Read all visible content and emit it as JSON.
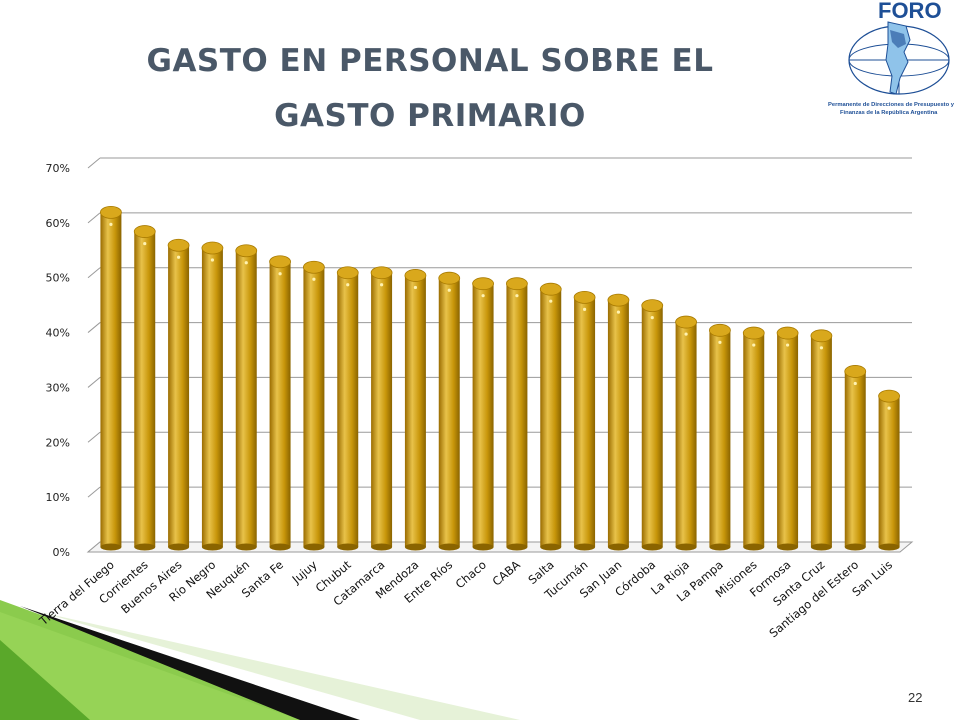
{
  "slide": {
    "title_line1": "GASTO EN PERSONAL SOBRE EL",
    "title_line2": "GASTO PRIMARIO",
    "page_number": "22"
  },
  "logo": {
    "name": "FORO",
    "caption_line1": "Permanente de Direcciones de Presupuesto y",
    "caption_line2": "Finanzas de la República Argentina"
  },
  "colors": {
    "bar": "#c8960a",
    "bar_highlight": "#e8c24a",
    "bar_shadow": "#8a6400",
    "title": "#4a5868",
    "green_accent": "#7ec53a"
  },
  "chart_data": {
    "type": "bar",
    "title": "",
    "xlabel": "",
    "ylabel": "",
    "ylim": [
      0,
      0.7
    ],
    "yticks": [
      0,
      0.1,
      0.2,
      0.3,
      0.4,
      0.5,
      0.6,
      0.7
    ],
    "ytick_labels": [
      "0%",
      "10%",
      "20%",
      "30%",
      "40%",
      "50%",
      "60%",
      "70%"
    ],
    "grid": true,
    "categories": [
      "Tierra del Fuego",
      "Corrientes",
      "Buenos Aires",
      "Río Negro",
      "Neuquén",
      "Santa Fe",
      "Jujuy",
      "Chubut",
      "Catamarca",
      "Mendoza",
      "Entre Ríos",
      "Chaco",
      "CABA",
      "Salta",
      "Tucumán",
      "San Juan",
      "Córdoba",
      "La Rioja",
      "La Pampa",
      "Misiones",
      "Formosa",
      "Santa Cruz",
      "Santiago del Estero",
      "San Luis"
    ],
    "values": [
      0.61,
      0.575,
      0.55,
      0.545,
      0.54,
      0.52,
      0.51,
      0.5,
      0.5,
      0.495,
      0.49,
      0.48,
      0.48,
      0.47,
      0.455,
      0.45,
      0.44,
      0.41,
      0.395,
      0.39,
      0.39,
      0.385,
      0.32,
      0.275
    ]
  }
}
